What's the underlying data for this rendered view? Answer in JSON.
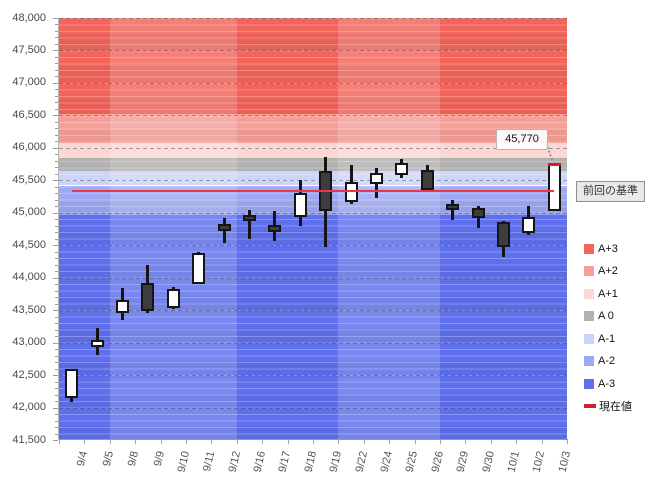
{
  "chart_data": {
    "type": "candlestick",
    "title": "",
    "y_axis": {
      "min": 41500,
      "max": 48000,
      "step": 500,
      "tick_labels": [
        "48,000",
        "47,500",
        "47,000",
        "46,500",
        "46,000",
        "45,500",
        "45,000",
        "44,500",
        "44,000",
        "43,500",
        "43,000",
        "42,500",
        "42,000",
        "41,500"
      ]
    },
    "categories": [
      "9/4",
      "9/5",
      "9/8",
      "9/9",
      "9/10",
      "9/11",
      "9/12",
      "9/16",
      "9/17",
      "9/18",
      "9/19",
      "9/22",
      "9/24",
      "9/25",
      "9/26",
      "9/29",
      "9/30",
      "10/1",
      "10/2",
      "10/3"
    ],
    "ohlc": [
      {
        "date": "9/4",
        "open": 42140,
        "high": 42590,
        "low": 42090,
        "close": 42590
      },
      {
        "date": "9/5",
        "open": 42940,
        "high": 43230,
        "low": 42810,
        "close": 43040
      },
      {
        "date": "9/8",
        "open": 43460,
        "high": 43840,
        "low": 43350,
        "close": 43660
      },
      {
        "date": "9/9",
        "open": 43920,
        "high": 44200,
        "low": 43460,
        "close": 43480
      },
      {
        "date": "9/10",
        "open": 43530,
        "high": 43850,
        "low": 43510,
        "close": 43830
      },
      {
        "date": "9/11",
        "open": 43910,
        "high": 44390,
        "low": 43900,
        "close": 44380
      },
      {
        "date": "9/12",
        "open": 44830,
        "high": 44920,
        "low": 44540,
        "close": 44720
      },
      {
        "date": "9/16",
        "open": 44960,
        "high": 45050,
        "low": 44590,
        "close": 44870
      },
      {
        "date": "9/17",
        "open": 44810,
        "high": 45030,
        "low": 44570,
        "close": 44710
      },
      {
        "date": "9/18",
        "open": 44930,
        "high": 45500,
        "low": 44800,
        "close": 45310
      },
      {
        "date": "9/19",
        "open": 45640,
        "high": 45860,
        "low": 44480,
        "close": 45020
      },
      {
        "date": "9/22",
        "open": 45170,
        "high": 45730,
        "low": 45130,
        "close": 45480
      },
      {
        "date": "9/24",
        "open": 45450,
        "high": 45690,
        "low": 45220,
        "close": 45620
      },
      {
        "date": "9/25",
        "open": 45580,
        "high": 45830,
        "low": 45530,
        "close": 45760
      },
      {
        "date": "9/26",
        "open": 45660,
        "high": 45740,
        "low": 45340,
        "close": 45350
      },
      {
        "date": "9/29",
        "open": 45130,
        "high": 45200,
        "low": 44890,
        "close": 45040
      },
      {
        "date": "9/30",
        "open": 45070,
        "high": 45110,
        "low": 44760,
        "close": 44920
      },
      {
        "date": "10/1",
        "open": 44860,
        "high": 44880,
        "low": 44320,
        "close": 44480
      },
      {
        "date": "10/2",
        "open": 44690,
        "high": 45110,
        "low": 44660,
        "close": 44930
      },
      {
        "date": "10/3",
        "open": 45020,
        "high": 45770,
        "low": 45020,
        "close": 45770,
        "marker": "current"
      }
    ],
    "bands": [
      {
        "label": "A+3",
        "from": 46520,
        "to": 48000,
        "color": "#f3645b"
      },
      {
        "label": "A+2",
        "from": 46080,
        "to": 46520,
        "color": "#f79e97"
      },
      {
        "label": "A+1",
        "from": 45840,
        "to": 46080,
        "color": "#fbd7d3"
      },
      {
        "label": "A 0",
        "from": 45650,
        "to": 45840,
        "color": "#b1b1b1"
      },
      {
        "label": "A-1",
        "from": 45420,
        "to": 45650,
        "color": "#ced4f9"
      },
      {
        "label": "A-2",
        "from": 44960,
        "to": 45420,
        "color": "#9da8f2"
      },
      {
        "label": "A-3",
        "from": 41500,
        "to": 44960,
        "color": "#5f70ee"
      }
    ],
    "weeks": [
      {
        "days": 2,
        "shade": "dark"
      },
      {
        "days": 5,
        "shade": "light"
      },
      {
        "days": 4,
        "shade": "dark"
      },
      {
        "days": 4,
        "shade": "light"
      },
      {
        "days": 5,
        "shade": "dark"
      }
    ],
    "baseline": {
      "value": 45335,
      "label": "前回の基準",
      "color": "#e73843"
    },
    "current_value": {
      "value": 45770,
      "label": "45,770",
      "color": "#d21f2c"
    },
    "legend": [
      {
        "label": "A+3",
        "color": "#f3645b",
        "marker": "square"
      },
      {
        "label": "A+2",
        "color": "#f79e97",
        "marker": "square"
      },
      {
        "label": "A+1",
        "color": "#fbd7d3",
        "marker": "square"
      },
      {
        "label": "A 0",
        "color": "#b1b1b1",
        "marker": "square"
      },
      {
        "label": "A-1",
        "color": "#ced4f9",
        "marker": "square"
      },
      {
        "label": "A-2",
        "color": "#9da8f2",
        "marker": "square"
      },
      {
        "label": "A-3",
        "color": "#5f70ee",
        "marker": "square"
      },
      {
        "label": "現在値",
        "color": "#d21f2c",
        "marker": "dash"
      }
    ],
    "candle_colors": {
      "up_fill": "#ffffff",
      "down_fill": "#3d3d3d",
      "outline": "#151515"
    },
    "grid": true,
    "legend_position": "right"
  }
}
